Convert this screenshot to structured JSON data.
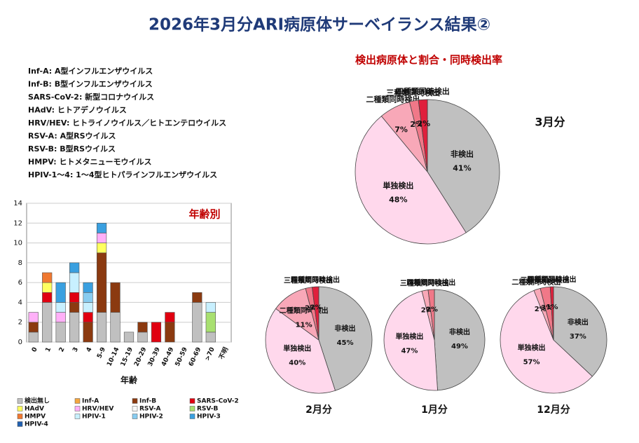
{
  "title": "2026年3月分ARI病原体サーベイランス結果②",
  "subtitle": "検出病原体と割合・同時検出率",
  "abbreviations": [
    "Inf-A: A型インフルエンザウイルス",
    "Inf-B: B型インフルエンザウイルス",
    "SARS-CoV-2: 新型コロナウイルス",
    "HAdV: ヒトアデノウイルス",
    "HRV/HEV: ヒトライノウイルス／ヒトエンテロウイルス",
    "RSV-A: A型RSウイルス",
    "RSV-B: B型RSウイルス",
    "HMPV: ヒトメタニューモウイルス",
    "HPIV-1～4: 1～4型ヒトパラインフルエンザウイルス"
  ],
  "chart_data": [
    {
      "type": "bar",
      "stacked": true,
      "annotation": "年齢別",
      "x_label": "年齢",
      "categories": [
        "0",
        "1",
        "2",
        "3",
        "4",
        "5-9",
        "10-14",
        "15-19",
        "20-29",
        "30-39",
        "40-49",
        "50-59",
        "60-69",
        ">70",
        "不明"
      ],
      "ylim": [
        0,
        14
      ],
      "yticks": [
        0,
        2,
        4,
        6,
        8,
        10,
        12,
        14
      ],
      "series": [
        {
          "name": "検出無し",
          "color": "#c0c0c0",
          "values": [
            1,
            4,
            2,
            3,
            0,
            3,
            3,
            1,
            1,
            0,
            0,
            0,
            4,
            1,
            0
          ]
        },
        {
          "name": "Inf-A",
          "color": "#f4a640",
          "values": [
            0,
            0,
            0,
            0,
            0,
            0,
            0,
            0,
            0,
            0,
            0,
            0,
            0,
            0,
            0
          ]
        },
        {
          "name": "Inf-B",
          "color": "#8b3a10",
          "values": [
            1,
            0,
            0,
            1,
            2,
            6,
            3,
            0,
            1,
            0,
            2,
            0,
            1,
            0,
            0
          ]
        },
        {
          "name": "SARS-CoV-2",
          "color": "#e00010",
          "values": [
            0,
            1,
            0,
            1,
            1,
            0,
            0,
            0,
            0,
            2,
            1,
            0,
            0,
            0,
            0
          ]
        },
        {
          "name": "HAdV",
          "color": "#ffff60",
          "values": [
            0,
            1,
            0,
            0,
            0,
            1,
            0,
            0,
            0,
            0,
            0,
            0,
            0,
            0,
            0
          ]
        },
        {
          "name": "HRV/HEV",
          "color": "#ffb0f8",
          "values": [
            1,
            0,
            1,
            0,
            0,
            1,
            0,
            0,
            0,
            0,
            0,
            0,
            0,
            0,
            0
          ]
        },
        {
          "name": "RSV-A",
          "color": "#f8f8f8",
          "values": [
            0,
            0,
            0,
            0,
            0,
            0,
            0,
            0,
            0,
            0,
            0,
            0,
            0,
            0,
            0
          ]
        },
        {
          "name": "RSV-B",
          "color": "#a8e070",
          "values": [
            0,
            0,
            0,
            0,
            0,
            0,
            0,
            0,
            0,
            0,
            0,
            0,
            0,
            2,
            0
          ]
        },
        {
          "name": "HMPV",
          "color": "#f07830",
          "values": [
            0,
            1,
            0,
            0,
            0,
            0,
            0,
            0,
            0,
            0,
            0,
            0,
            0,
            0,
            0
          ]
        },
        {
          "name": "HPIV-1",
          "color": "#c8f0ff",
          "values": [
            0,
            0,
            1,
            2,
            1,
            0,
            0,
            0,
            0,
            0,
            0,
            0,
            0,
            1,
            0
          ]
        },
        {
          "name": "HPIV-2",
          "color": "#88ccf0",
          "values": [
            0,
            0,
            0,
            0,
            1,
            0,
            0,
            0,
            0,
            0,
            0,
            0,
            0,
            0,
            0
          ]
        },
        {
          "name": "HPIV-3",
          "color": "#3aa0e0",
          "values": [
            0,
            0,
            2,
            1,
            1,
            1,
            0,
            0,
            0,
            0,
            0,
            0,
            0,
            0,
            0
          ]
        },
        {
          "name": "HPIV-4",
          "color": "#2060b0",
          "values": [
            0,
            0,
            0,
            0,
            0,
            0,
            0,
            0,
            0,
            0,
            0,
            0,
            0,
            0,
            0
          ]
        }
      ]
    },
    {
      "type": "pie",
      "title": "3月分",
      "categories": [
        "非検出",
        "単独検出",
        "二種類同時検出",
        "三種類同時検出",
        "四種類同時検出"
      ],
      "values": [
        41,
        48,
        7,
        2,
        2
      ],
      "value_labels": [
        "41%",
        "48%",
        "7%",
        "2%",
        "2%"
      ],
      "colors": [
        "#c0c0c0",
        "#ffd8ec",
        "#f8a8b8",
        "#f07888",
        "#e0203c"
      ]
    },
    {
      "type": "pie",
      "title": "2月分",
      "categories": [
        "非検出",
        "単独検出",
        "二種類同時検出",
        "三種類同時検出",
        "四種類同時検出"
      ],
      "values": [
        45,
        40,
        11,
        2,
        2
      ],
      "value_labels": [
        "45%",
        "40%",
        "11%",
        "2%",
        "2%"
      ],
      "colors": [
        "#c0c0c0",
        "#ffd8ec",
        "#f8a8b8",
        "#f07888",
        "#e0203c"
      ]
    },
    {
      "type": "pie",
      "title": "1月分",
      "categories": [
        "非検出",
        "単独検出",
        "三種類同時検出",
        "四種類同時検出"
      ],
      "values": [
        49,
        47,
        2,
        2
      ],
      "value_labels": [
        "49%",
        "47%",
        "2%",
        "2%"
      ],
      "colors": [
        "#c0c0c0",
        "#ffd8ec",
        "#f8a8b8",
        "#f07888"
      ]
    },
    {
      "type": "pie",
      "title": "12月分",
      "categories": [
        "非検出",
        "単独検出",
        "二種類同時検出",
        "三種類同時検出",
        "四種類同時検出"
      ],
      "values": [
        37,
        57,
        2,
        3,
        1
      ],
      "value_labels": [
        "37%",
        "57%",
        "2%",
        "3%",
        "1%"
      ],
      "colors": [
        "#c0c0c0",
        "#ffd8ec",
        "#f8a8b8",
        "#f07888",
        "#e0203c"
      ]
    }
  ]
}
